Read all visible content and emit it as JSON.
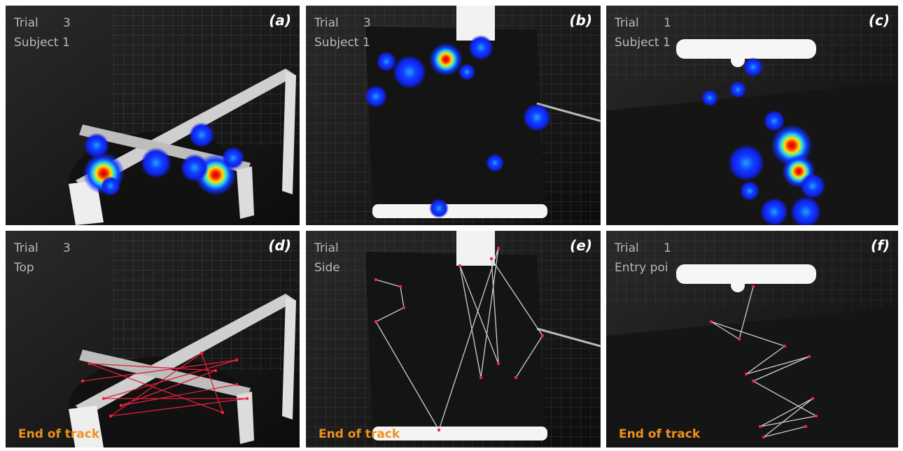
{
  "panels": [
    {
      "label": "(a)",
      "trial_label": "Trial",
      "trial": "3",
      "subtitle": "Subject 1"
    },
    {
      "label": "(b)",
      "trial_label": "Trial",
      "trial": "3",
      "subtitle": "Subject 1"
    },
    {
      "label": "(c)",
      "trial_label": "Trial",
      "trial": "1",
      "subtitle": "Subject 1"
    },
    {
      "label": "(d)",
      "trial_label": "Trial",
      "trial": "3",
      "subtitle": "Top",
      "status": "End of track"
    },
    {
      "label": "(e)",
      "trial_label": "Trial",
      "subtitle": "Side",
      "status": "End of track"
    },
    {
      "label": "(f)",
      "trial_label": "Trial",
      "trial": "1",
      "subtitle": "Entry poi",
      "status": "End of track"
    }
  ]
}
